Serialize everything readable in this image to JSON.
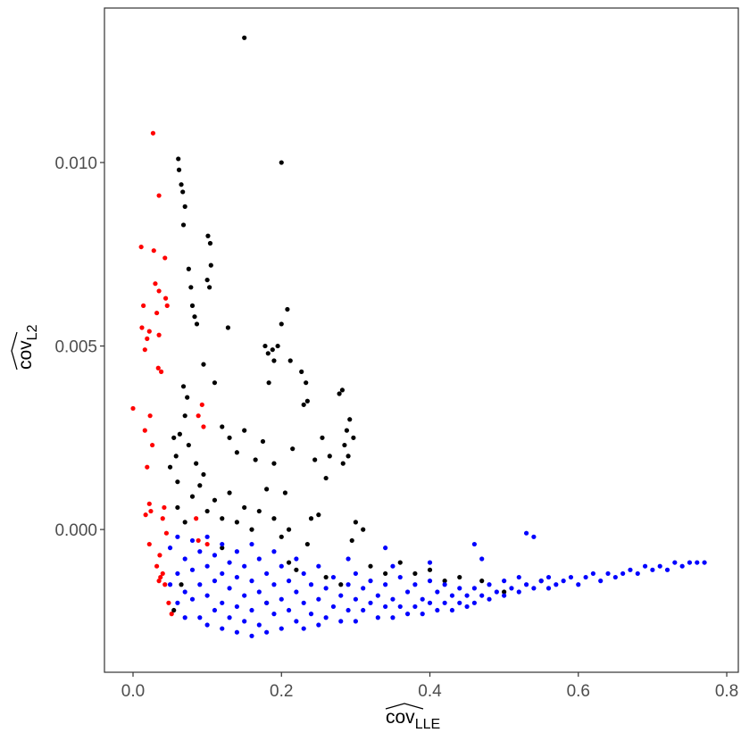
{
  "chart_data": {
    "type": "scatter",
    "xlabel": {
      "text": "cov",
      "subscript": "LLE"
    },
    "ylabel": {
      "text": "cov",
      "subscript": "L2"
    },
    "xlim": [
      -0.0385,
      0.8156
    ],
    "ylim": [
      -0.00389,
      0.01421
    ],
    "xticks": [
      {
        "value": 0,
        "label": "0.0"
      },
      0.2,
      0.4,
      0.6,
      0.8
    ],
    "yticks": [
      {
        "value": 0,
        "label": "0.000"
      },
      {
        "value": 0.005,
        "label": "0.005"
      },
      {
        "value": 0.01,
        "label": "0.010"
      }
    ],
    "grid": false,
    "series": [
      {
        "color": "#ff0000",
        "x": [
          0.027,
          0.035,
          0.011,
          0.028,
          0.043,
          0.03,
          0.035,
          0.044,
          0.014,
          0.032,
          0.046,
          0.012,
          0.022,
          0.035,
          0.019,
          0.016,
          0.034,
          0.038,
          0.0,
          0.023,
          0.016,
          0.026,
          0.019,
          0.022,
          0.017,
          0.024,
          0.042,
          0.04,
          0.045,
          0.022,
          0.036,
          0.032,
          0.04,
          0.043,
          0.037,
          0.048,
          0.052,
          0.035,
          0.088,
          0.093,
          0.095,
          0.088,
          0.1,
          0.085
        ],
        "values": [
          0.0108,
          0.0091,
          0.0077,
          0.0076,
          0.0074,
          0.0067,
          0.0065,
          0.0063,
          0.0061,
          0.0059,
          0.0061,
          0.0055,
          0.0054,
          0.0053,
          0.0052,
          0.0049,
          0.0044,
          0.0043,
          0.0033,
          0.0031,
          0.0027,
          0.0023,
          0.0017,
          0.0007,
          0.0004,
          0.0005,
          0.0006,
          0.0003,
          -0.0001,
          -0.0004,
          -0.0007,
          -0.001,
          -0.0012,
          -0.0015,
          -0.0013,
          -0.002,
          -0.0023,
          -0.0014,
          0.0031,
          0.0034,
          0.0028,
          -0.0003,
          -0.0004,
          0.0003
        ]
      },
      {
        "color": "#000000",
        "x": [
          0.15,
          0.2,
          0.061,
          0.062,
          0.065,
          0.067,
          0.07,
          0.068,
          0.101,
          0.104,
          0.105,
          0.1,
          0.103,
          0.075,
          0.078,
          0.08,
          0.083,
          0.086,
          0.128,
          0.208,
          0.2,
          0.178,
          0.188,
          0.195,
          0.182,
          0.212,
          0.183,
          0.19,
          0.227,
          0.233,
          0.23,
          0.235,
          0.282,
          0.278,
          0.292,
          0.288,
          0.285,
          0.29,
          0.297,
          0.283,
          0.095,
          0.11,
          0.068,
          0.073,
          0.07,
          0.063,
          0.055,
          0.058,
          0.05,
          0.06,
          0.075,
          0.085,
          0.095,
          0.12,
          0.13,
          0.14,
          0.15,
          0.165,
          0.175,
          0.19,
          0.205,
          0.215,
          0.245,
          0.255,
          0.26,
          0.265,
          0.25,
          0.235,
          0.24,
          0.3,
          0.31,
          0.295,
          0.32,
          0.34,
          0.36,
          0.38,
          0.4,
          0.42,
          0.44,
          0.47,
          0.5,
          0.55,
          0.06,
          0.07,
          0.08,
          0.09,
          0.1,
          0.11,
          0.12,
          0.13,
          0.14,
          0.15,
          0.16,
          0.17,
          0.18,
          0.19,
          0.2,
          0.21,
          0.22,
          0.26,
          0.28,
          0.18,
          0.21,
          0.055,
          0.065,
          0.12
        ],
        "values": [
          0.0134,
          0.01,
          0.0101,
          0.0098,
          0.0094,
          0.0092,
          0.0088,
          0.0083,
          0.008,
          0.0078,
          0.0072,
          0.0068,
          0.0066,
          0.0071,
          0.0066,
          0.0061,
          0.0058,
          0.0056,
          0.0055,
          0.006,
          0.0056,
          0.005,
          0.0049,
          0.005,
          0.0048,
          0.0046,
          0.004,
          0.0046,
          0.0043,
          0.004,
          0.0034,
          0.0035,
          0.0038,
          0.0037,
          0.003,
          0.0027,
          0.0023,
          0.002,
          0.0025,
          0.0018,
          0.0045,
          0.004,
          0.0039,
          0.0036,
          0.0031,
          0.0026,
          0.0025,
          0.002,
          0.0017,
          0.0013,
          0.0023,
          0.0018,
          0.0015,
          0.0028,
          0.0025,
          0.0021,
          0.0027,
          0.0019,
          0.0024,
          0.0018,
          0.001,
          0.0022,
          0.0019,
          0.0025,
          0.0014,
          0.002,
          0.0004,
          -0.0004,
          0.0003,
          0.0002,
          0.0,
          -0.0003,
          -0.001,
          -0.0012,
          -0.0009,
          -0.0012,
          -0.0011,
          -0.0014,
          -0.0013,
          -0.0014,
          -0.0017,
          -0.0014,
          0.0006,
          0.0002,
          0.0009,
          0.0012,
          0.0005,
          0.0008,
          0.0003,
          0.001,
          0.0002,
          0.0006,
          0.0,
          0.0005,
          0.0011,
          0.0003,
          -0.0002,
          -0.0009,
          -0.0011,
          -0.0013,
          -0.0015,
          -0.002,
          0.0,
          -0.0022,
          -0.0015,
          -0.0005
        ]
      },
      {
        "color": "#0000ff",
        "x": [
          0.05,
          0.05,
          0.06,
          0.06,
          0.06,
          0.07,
          0.07,
          0.07,
          0.08,
          0.08,
          0.08,
          0.09,
          0.09,
          0.09,
          0.1,
          0.1,
          0.1,
          0.1,
          0.11,
          0.11,
          0.11,
          0.12,
          0.12,
          0.12,
          0.12,
          0.13,
          0.13,
          0.13,
          0.14,
          0.14,
          0.14,
          0.14,
          0.15,
          0.15,
          0.15,
          0.16,
          0.16,
          0.16,
          0.16,
          0.17,
          0.17,
          0.17,
          0.18,
          0.18,
          0.18,
          0.19,
          0.19,
          0.19,
          0.2,
          0.2,
          0.2,
          0.21,
          0.21,
          0.22,
          0.22,
          0.22,
          0.23,
          0.23,
          0.23,
          0.24,
          0.24,
          0.25,
          0.25,
          0.25,
          0.26,
          0.26,
          0.27,
          0.27,
          0.28,
          0.28,
          0.29,
          0.29,
          0.29,
          0.3,
          0.3,
          0.3,
          0.31,
          0.31,
          0.32,
          0.32,
          0.33,
          0.33,
          0.34,
          0.34,
          0.34,
          0.35,
          0.35,
          0.36,
          0.36,
          0.37,
          0.37,
          0.38,
          0.38,
          0.39,
          0.39,
          0.4,
          0.4,
          0.41,
          0.41,
          0.42,
          0.42,
          0.43,
          0.43,
          0.44,
          0.44,
          0.45,
          0.45,
          0.46,
          0.46,
          0.46,
          0.47,
          0.48,
          0.48,
          0.49,
          0.5,
          0.5,
          0.51,
          0.52,
          0.52,
          0.53,
          0.54,
          0.54,
          0.55,
          0.56,
          0.56,
          0.57,
          0.58,
          0.59,
          0.6,
          0.61,
          0.62,
          0.63,
          0.64,
          0.65,
          0.66,
          0.67,
          0.68,
          0.69,
          0.7,
          0.71,
          0.72,
          0.73,
          0.74,
          0.75,
          0.76,
          0.77,
          0.53,
          0.47,
          0.4,
          0.35
        ],
        "values": [
          -0.0005,
          -0.0015,
          -0.0002,
          -0.0012,
          -0.002,
          -0.0008,
          -0.0017,
          -0.0024,
          -0.0003,
          -0.0011,
          -0.0019,
          -0.0006,
          -0.0015,
          -0.0024,
          -0.0002,
          -0.001,
          -0.0018,
          -0.0026,
          -0.0007,
          -0.0014,
          -0.0022,
          -0.0004,
          -0.0012,
          -0.002,
          -0.0027,
          -0.0009,
          -0.0016,
          -0.0024,
          -0.0006,
          -0.0013,
          -0.0021,
          -0.0028,
          -0.001,
          -0.0018,
          -0.0025,
          -0.0004,
          -0.0014,
          -0.0022,
          -0.0029,
          -0.0008,
          -0.0017,
          -0.0026,
          -0.0012,
          -0.002,
          -0.0028,
          -0.0006,
          -0.0015,
          -0.0023,
          -0.001,
          -0.0019,
          -0.0027,
          -0.0014,
          -0.0022,
          -0.0008,
          -0.0017,
          -0.0025,
          -0.0012,
          -0.002,
          -0.0027,
          -0.0015,
          -0.0023,
          -0.001,
          -0.0019,
          -0.0026,
          -0.0016,
          -0.0024,
          -0.0013,
          -0.0021,
          -0.0018,
          -0.0025,
          -0.0008,
          -0.0015,
          -0.0022,
          -0.0012,
          -0.0019,
          -0.0025,
          -0.0016,
          -0.0022,
          -0.0014,
          -0.002,
          -0.0018,
          -0.0024,
          -0.0005,
          -0.0015,
          -0.0021,
          -0.0019,
          -0.0024,
          -0.0013,
          -0.0021,
          -0.0017,
          -0.0023,
          -0.0015,
          -0.0021,
          -0.0019,
          -0.0023,
          -0.0014,
          -0.002,
          -0.0017,
          -0.0022,
          -0.0015,
          -0.002,
          -0.0018,
          -0.0022,
          -0.0016,
          -0.002,
          -0.0018,
          -0.0021,
          -0.0004,
          -0.0016,
          -0.002,
          -0.0018,
          -0.0015,
          -0.0019,
          -0.0017,
          -0.0014,
          -0.0018,
          -0.0016,
          -0.0013,
          -0.0017,
          -0.0015,
          -0.0002,
          -0.0016,
          -0.0014,
          -0.0013,
          -0.0016,
          -0.0015,
          -0.0014,
          -0.0013,
          -0.0015,
          -0.0013,
          -0.0012,
          -0.0014,
          -0.0012,
          -0.0013,
          -0.0012,
          -0.0011,
          -0.0012,
          -0.001,
          -0.0011,
          -0.001,
          -0.0011,
          -0.0009,
          -0.001,
          -0.0009,
          -0.0009,
          -0.0009,
          -0.0001,
          -0.0008,
          -0.0009,
          -0.001
        ]
      }
    ]
  }
}
